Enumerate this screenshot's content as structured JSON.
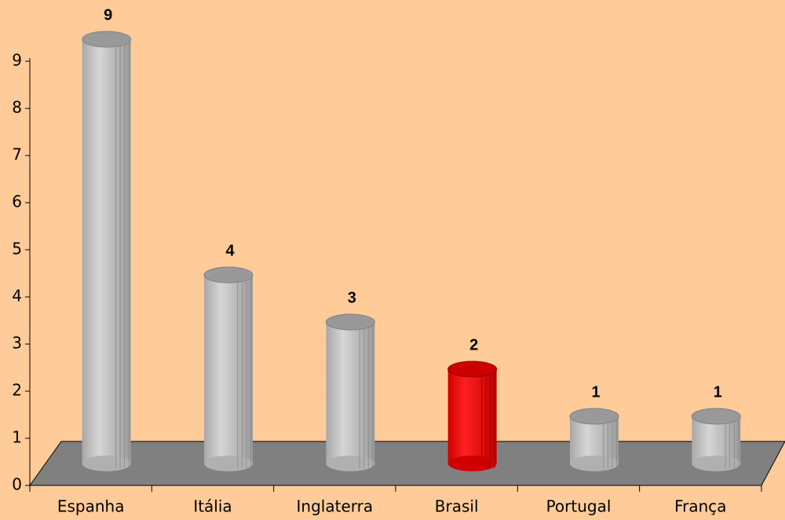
{
  "chart_data": {
    "type": "bar",
    "categories": [
      "Espanha",
      "Itália",
      "Inglaterra",
      "Brasil",
      "Portugal",
      "França"
    ],
    "values": [
      9,
      4,
      3,
      2,
      1,
      1
    ],
    "colors": [
      "#c0c0c0",
      "#c0c0c0",
      "#c0c0c0",
      "#ff0000",
      "#c0c0c0",
      "#c0c0c0"
    ],
    "ylim": [
      0,
      9
    ],
    "yticks": [
      0,
      1,
      2,
      3,
      4,
      5,
      6,
      7,
      8,
      9
    ],
    "grid": false
  }
}
